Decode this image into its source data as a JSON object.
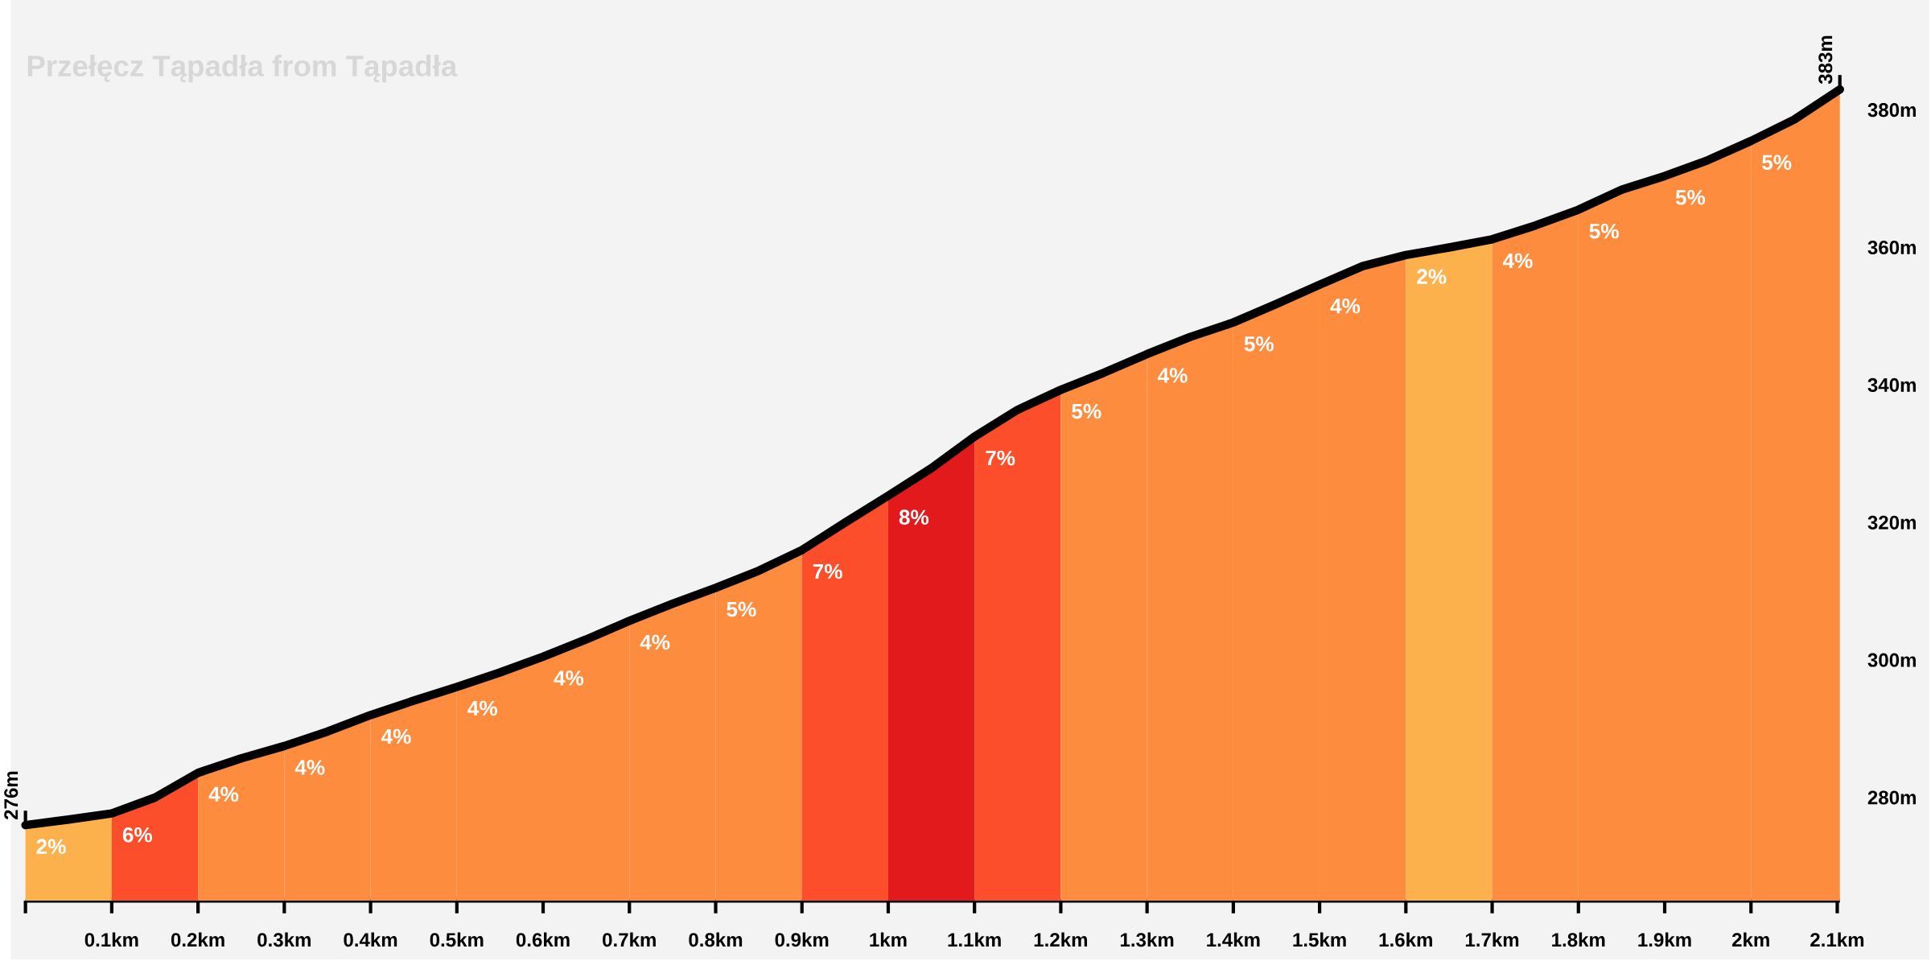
{
  "chart_data": {
    "type": "area",
    "title": "Przełęcz Tąpadła from Tąpadła",
    "xlim": [
      0,
      2.103
    ],
    "ylim": [
      265,
      396
    ],
    "xticks": [
      {
        "value": 0,
        "label": null
      },
      {
        "value": 0.1,
        "label": "0.1km"
      },
      {
        "value": 0.2,
        "label": "0.2km"
      },
      {
        "value": 0.3,
        "label": "0.3km"
      },
      {
        "value": 0.4,
        "label": "0.4km"
      },
      {
        "value": 0.5,
        "label": "0.5km"
      },
      {
        "value": 0.6,
        "label": "0.6km"
      },
      {
        "value": 0.7,
        "label": "0.7km"
      },
      {
        "value": 0.8,
        "label": "0.8km"
      },
      {
        "value": 0.9,
        "label": "0.9km"
      },
      {
        "value": 1,
        "label": "1km"
      },
      {
        "value": 1.1,
        "label": "1.1km"
      },
      {
        "value": 1.2,
        "label": "1.2km"
      },
      {
        "value": 1.3,
        "label": "1.3km"
      },
      {
        "value": 1.4,
        "label": "1.4km"
      },
      {
        "value": 1.5,
        "label": "1.5km"
      },
      {
        "value": 1.6,
        "label": "1.6km"
      },
      {
        "value": 1.7,
        "label": "1.7km"
      },
      {
        "value": 1.8,
        "label": "1.8km"
      },
      {
        "value": 1.9,
        "label": "1.9km"
      },
      {
        "value": 2,
        "label": "2km"
      },
      {
        "value": 2.1,
        "label": "2.1km"
      }
    ],
    "yticks": [
      {
        "value": 280,
        "label": "280m"
      },
      {
        "value": 300,
        "label": "300m"
      },
      {
        "value": 320,
        "label": "320m"
      },
      {
        "value": 340,
        "label": "340m"
      },
      {
        "value": 360,
        "label": "360m"
      },
      {
        "value": 380,
        "label": "380m"
      }
    ],
    "series": [
      {
        "color": "#fdb14c",
        "x": [
          0,
          0.05,
          0.1
        ],
        "values": [
          276,
          276.8,
          277.7
        ]
      },
      {
        "color": "#fc4e2a",
        "x": [
          0.1,
          0.15,
          0.2
        ],
        "values": [
          277.7,
          280,
          283.6
        ]
      },
      {
        "color": "#fd8c3e",
        "x": [
          0.2,
          0.25,
          0.3
        ],
        "values": [
          283.6,
          285.7,
          287.5
        ]
      },
      {
        "color": "#fd8c3e",
        "x": [
          0.3,
          0.35,
          0.4
        ],
        "values": [
          287.5,
          289.6,
          292
        ]
      },
      {
        "color": "#fd8c3e",
        "x": [
          0.4,
          0.45,
          0.5
        ],
        "values": [
          292,
          294.1,
          296.1
        ]
      },
      {
        "color": "#fd8c3e",
        "x": [
          0.5,
          0.55,
          0.6
        ],
        "values": [
          296.1,
          298.2,
          300.5
        ]
      },
      {
        "color": "#fd8c3e",
        "x": [
          0.6,
          0.65,
          0.7
        ],
        "values": [
          300.5,
          303,
          305.7
        ]
      },
      {
        "color": "#fd8c3e",
        "x": [
          0.7,
          0.75,
          0.8
        ],
        "values": [
          305.7,
          308.2,
          310.5
        ]
      },
      {
        "color": "#fd8c3e",
        "x": [
          0.8,
          0.85,
          0.9
        ],
        "values": [
          310.5,
          313,
          316
        ]
      },
      {
        "color": "#fc4e2a",
        "x": [
          0.9,
          0.95,
          1.0
        ],
        "values": [
          316,
          320,
          323.9
        ]
      },
      {
        "color": "#e31a1c",
        "x": [
          1.0,
          1.05,
          1.1
        ],
        "values": [
          323.9,
          327.9,
          332.5
        ]
      },
      {
        "color": "#fc4e2a",
        "x": [
          1.1,
          1.15,
          1.2
        ],
        "values": [
          332.5,
          336.4,
          339.3
        ]
      },
      {
        "color": "#fd8c3e",
        "x": [
          1.2,
          1.25,
          1.3
        ],
        "values": [
          339.3,
          341.8,
          344.5
        ]
      },
      {
        "color": "#fd8c3e",
        "x": [
          1.3,
          1.35,
          1.4
        ],
        "values": [
          344.5,
          347,
          349.1
        ]
      },
      {
        "color": "#fd8c3e",
        "x": [
          1.4,
          1.45,
          1.5
        ],
        "values": [
          349.1,
          351.8,
          354.6
        ]
      },
      {
        "color": "#fd8c3e",
        "x": [
          1.5,
          1.55,
          1.6
        ],
        "values": [
          354.6,
          357.3,
          358.9
        ]
      },
      {
        "color": "#fdb14c",
        "x": [
          1.6,
          1.65,
          1.7
        ],
        "values": [
          358.9,
          360,
          361.2
        ]
      },
      {
        "color": "#fd8c3e",
        "x": [
          1.7,
          1.75,
          1.8
        ],
        "values": [
          361.2,
          363.2,
          365.5
        ]
      },
      {
        "color": "#fd8c3e",
        "x": [
          1.8,
          1.85,
          1.9
        ],
        "values": [
          365.5,
          368.4,
          370.4
        ]
      },
      {
        "color": "#fd8c3e",
        "x": [
          1.9,
          1.95,
          2.0
        ],
        "values": [
          370.4,
          372.7,
          375.5
        ]
      },
      {
        "color": "#fd8c3e",
        "x": [
          2.0,
          2.05,
          2.103
        ],
        "values": [
          375.5,
          378.6,
          383
        ]
      },
      {
        "type": "line",
        "color": "#000000",
        "x": [
          0,
          0.05,
          0.1,
          0.15,
          0.2,
          0.25,
          0.3,
          0.35,
          0.4,
          0.45,
          0.5,
          0.55,
          0.6,
          0.65,
          0.7,
          0.75,
          0.8,
          0.85,
          0.9,
          0.95,
          1.0,
          1.05,
          1.1,
          1.15,
          1.2,
          1.25,
          1.3,
          1.35,
          1.4,
          1.45,
          1.5,
          1.55,
          1.6,
          1.65,
          1.7,
          1.75,
          1.8,
          1.85,
          1.9,
          1.95,
          2.0,
          2.05,
          2.103
        ],
        "values": [
          276,
          276.8,
          277.7,
          280,
          283.6,
          285.7,
          287.5,
          289.6,
          292,
          294.1,
          296.1,
          298.2,
          300.5,
          303,
          305.7,
          308.2,
          310.5,
          313,
          316,
          320,
          323.9,
          327.9,
          332.5,
          336.4,
          339.3,
          341.8,
          344.5,
          347,
          349.1,
          351.8,
          354.6,
          357.3,
          358.9,
          360,
          361.2,
          363.2,
          365.5,
          368.4,
          370.4,
          372.7,
          375.5,
          378.6,
          383
        ],
        "value_labels": [
          "276m",
          null,
          null,
          null,
          null,
          null,
          null,
          null,
          null,
          null,
          null,
          null,
          null,
          null,
          null,
          null,
          null,
          null,
          null,
          null,
          null,
          null,
          null,
          null,
          null,
          null,
          null,
          null,
          null,
          null,
          null,
          null,
          null,
          null,
          null,
          null,
          null,
          null,
          null,
          null,
          null,
          null,
          "383m"
        ]
      }
    ],
    "annotations": [
      "2%",
      "6%",
      "4%",
      "4%",
      "4%",
      "4%",
      "4%",
      "4%",
      "5%",
      "7%",
      "8%",
      "7%",
      "5%",
      "4%",
      "5%",
      "4%",
      "2%",
      "4%",
      "5%",
      "5%",
      "5%"
    ]
  }
}
